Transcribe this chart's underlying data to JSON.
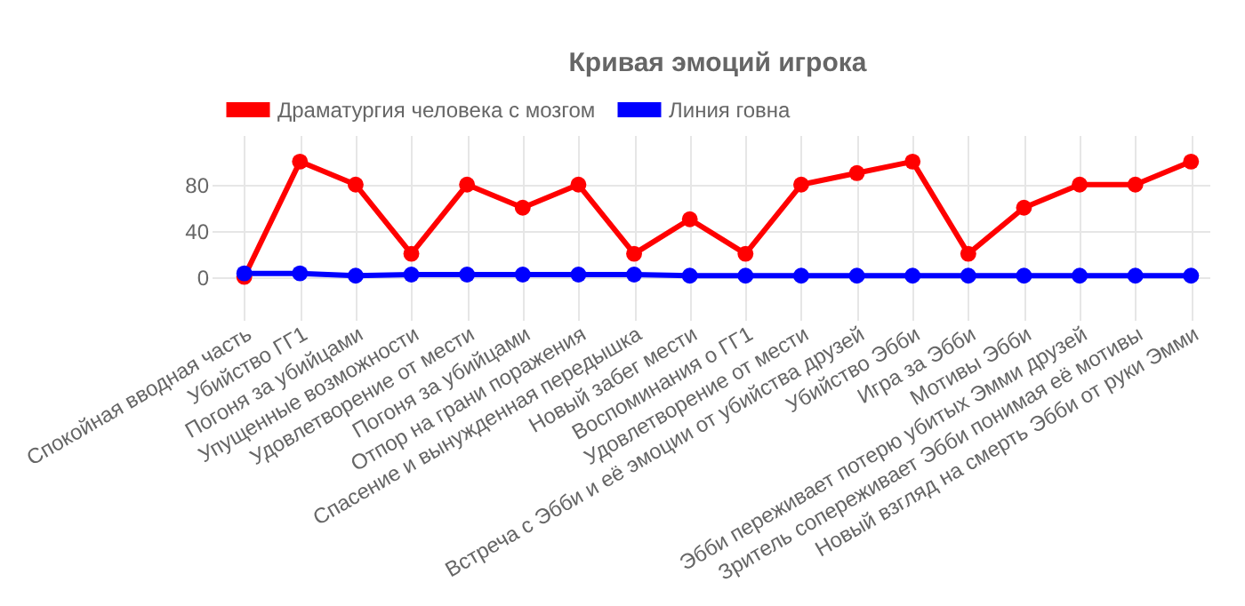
{
  "chart_data": {
    "type": "line",
    "title": "Кривая эмоций игрока",
    "categories": [
      "Спокойная вводная часть",
      "Убийство ГГ1",
      "Погоня за убийцами",
      "Упущенные возможности",
      "Удовлетворение от мести",
      "Погоня за убийцами",
      "Отпор на грани поражения",
      "Спасение и вынужденная передышка",
      "Новый забег мести",
      "Воспоминания о ГГ1",
      "Удовлетворение от мести",
      "Встреча с Эбби и её эмоции от убийства друзей",
      "Убийство Эбби",
      "Игра за Эбби",
      "Мотивы Эбби",
      "Эбби переживает потерю убитых Эмми друзей",
      "Зритель сопереживает Эбби понимая её мотивы",
      "Новый взгляд на смерть Эбби от руки Эмми"
    ],
    "series": [
      {
        "name": "Драматургия человека с мозгом",
        "color": "#ff0000",
        "values": [
          0,
          100,
          80,
          20,
          80,
          60,
          80,
          20,
          50,
          20,
          80,
          90,
          100,
          20,
          60,
          80,
          80,
          100
        ]
      },
      {
        "name": "Линия говна",
        "color": "#0000ff",
        "values": [
          3,
          3,
          1,
          2,
          2,
          2,
          2,
          2,
          1,
          1,
          1,
          1,
          1,
          1,
          1,
          1,
          1,
          1
        ]
      }
    ],
    "ylim": [
      -25,
      123
    ],
    "yticks": [
      0,
      40,
      80
    ],
    "grid": true,
    "legend": "top",
    "marker": "circle",
    "line_style": "solid"
  }
}
